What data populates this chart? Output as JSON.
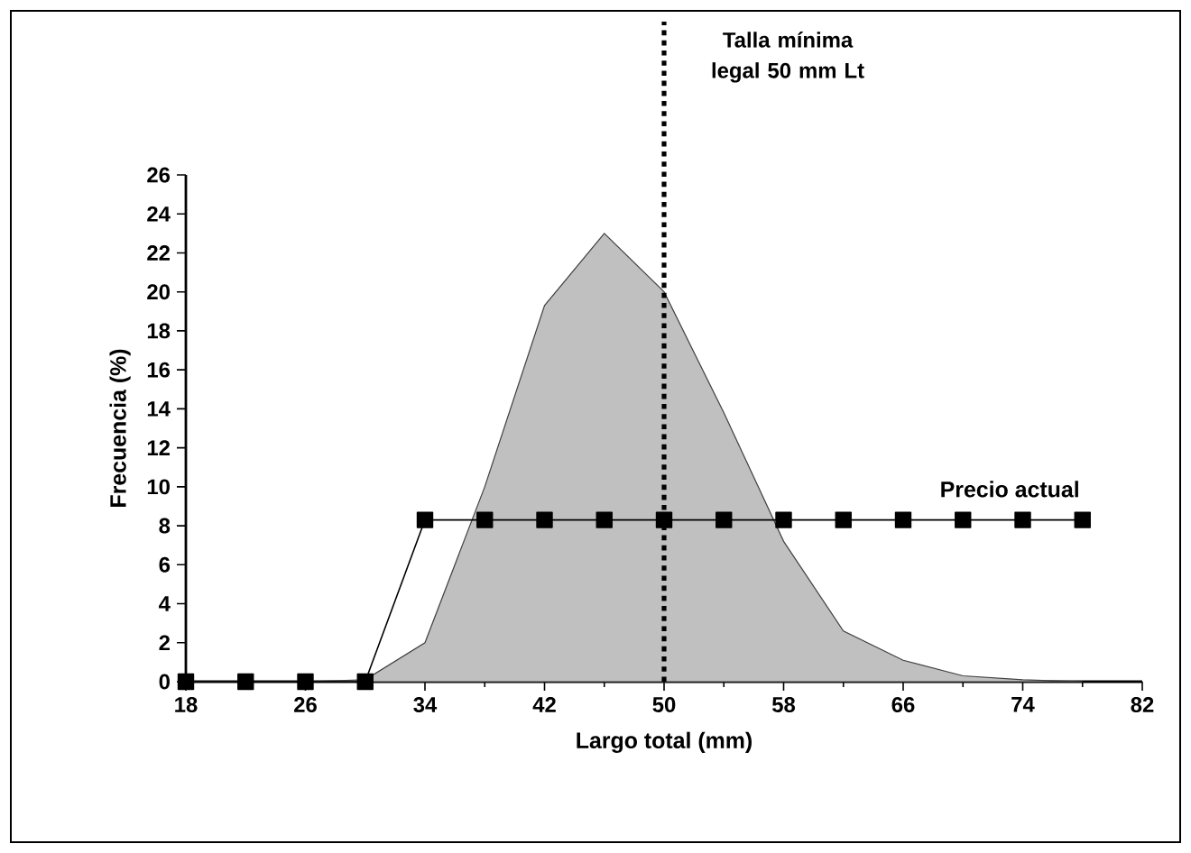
{
  "chart_data": {
    "type": "line",
    "xlabel": "Largo total (mm)",
    "ylabel": "Frecuencia (%)",
    "xlim": [
      18,
      82
    ],
    "xticks": [
      18,
      26,
      34,
      42,
      50,
      58,
      66,
      74,
      82
    ],
    "ylim": [
      0,
      26
    ],
    "yticks": [
      0,
      2,
      4,
      6,
      8,
      10,
      12,
      14,
      16,
      18,
      20,
      22,
      24,
      26
    ],
    "grid": false,
    "series": [
      {
        "type": "area",
        "color": "#c0c0c0",
        "x": [
          18,
          22,
          26,
          30,
          34,
          38,
          42,
          46,
          50,
          54,
          58,
          62,
          66,
          70,
          74,
          78
        ],
        "values": [
          0,
          0,
          0,
          0.1,
          2,
          10,
          19.3,
          23,
          20,
          13.8,
          7.2,
          2.6,
          1.1,
          0.3,
          0.1,
          0
        ]
      },
      {
        "name": "Precio actual",
        "color": "#000000",
        "marker": "square",
        "x": [
          18,
          22,
          26,
          30,
          34,
          38,
          42,
          46,
          50,
          54,
          58,
          62,
          66,
          70,
          74,
          78
        ],
        "values": [
          0,
          0,
          0,
          0,
          8.3,
          8.3,
          8.3,
          8.3,
          8.3,
          8.3,
          8.3,
          8.3,
          8.3,
          8.3,
          8.3,
          8.3
        ]
      }
    ],
    "ref_lines": [
      {
        "axis": "x",
        "value": 50,
        "label": "Talla mínima legal 50 mm Lt",
        "line_style": "dotted"
      }
    ]
  }
}
